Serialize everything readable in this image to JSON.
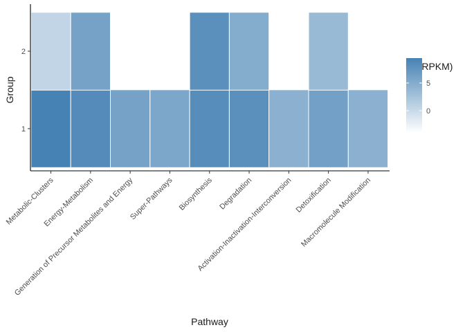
{
  "chart_data": {
    "type": "heatmap",
    "xlabel": "Pathway",
    "ylabel": "Group",
    "x_categories": [
      "Metabolic-Clusters",
      "Energy-Metabolism",
      "Generation of Precursor Metabolites and Energy",
      "Super-Pathways",
      "Biosynthesis",
      "Degradation",
      "Activation-Inactivation-Interconversion",
      "Detoxification",
      "Macromolecule Modification"
    ],
    "y_categories": [
      "1",
      "2"
    ],
    "cells": [
      {
        "x": "Metabolic-Clusters",
        "y": "1",
        "value": 9.5
      },
      {
        "x": "Energy-Metabolism",
        "y": "1",
        "value": 8.5
      },
      {
        "x": "Generation of Precursor Metabolites and Energy",
        "y": "1",
        "value": 6.0
      },
      {
        "x": "Super-Pathways",
        "y": "1",
        "value": 5.5
      },
      {
        "x": "Biosynthesis",
        "y": "1",
        "value": 8.3
      },
      {
        "x": "Degradation",
        "y": "1",
        "value": 8.0
      },
      {
        "x": "Activation-Inactivation-Interconversion",
        "y": "1",
        "value": 4.5
      },
      {
        "x": "Detoxification",
        "y": "1",
        "value": 6.3
      },
      {
        "x": "Macromolecule Modification",
        "y": "1",
        "value": 4.5
      },
      {
        "x": "Metabolic-Clusters",
        "y": "2",
        "value": 0.5
      },
      {
        "x": "Energy-Metabolism",
        "y": "2",
        "value": 6.0
      },
      {
        "x": "Biosynthesis",
        "y": "2",
        "value": 8.0
      },
      {
        "x": "Degradation",
        "y": "2",
        "value": 5.0
      },
      {
        "x": "Detoxification",
        "y": "2",
        "value": 3.5
      }
    ],
    "legend": {
      "title": "log(RPKM)",
      "ticks": [
        0,
        5
      ],
      "range": [
        -4,
        9.5
      ],
      "low_color": "#ffffff",
      "high_color": "#4682b4",
      "position": "right"
    },
    "grid": false
  }
}
